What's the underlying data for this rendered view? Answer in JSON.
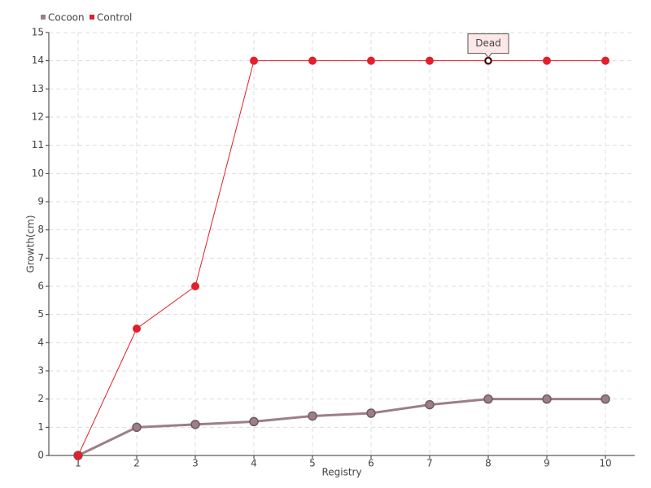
{
  "chart_data": {
    "type": "line",
    "x_label": "Registry",
    "y_label": "Growth(cm)",
    "x": [
      1,
      2,
      3,
      4,
      5,
      6,
      7,
      8,
      9,
      10
    ],
    "series": [
      {
        "name": "Cocoon",
        "color": "#9c7f87",
        "values": [
          0,
          1,
          1.1,
          1.2,
          1.4,
          1.5,
          1.8,
          2,
          2,
          2
        ]
      },
      {
        "name": "Control",
        "color": "#e0202a",
        "values": [
          0,
          4.5,
          6,
          14,
          14,
          14,
          14,
          14,
          14,
          14
        ]
      }
    ],
    "xlim": [
      0.5,
      10.5
    ],
    "xticks": [
      1,
      2,
      3,
      4,
      5,
      6,
      7,
      8,
      9,
      10
    ],
    "ylim": [
      0,
      15
    ],
    "yticks": [
      0,
      1,
      2,
      3,
      4,
      5,
      6,
      7,
      8,
      9,
      10,
      11,
      12,
      13,
      14,
      15
    ],
    "grid": true,
    "legend": "top-left",
    "annotations": [
      {
        "text": "Dead",
        "x": 8,
        "y": 14
      }
    ]
  }
}
